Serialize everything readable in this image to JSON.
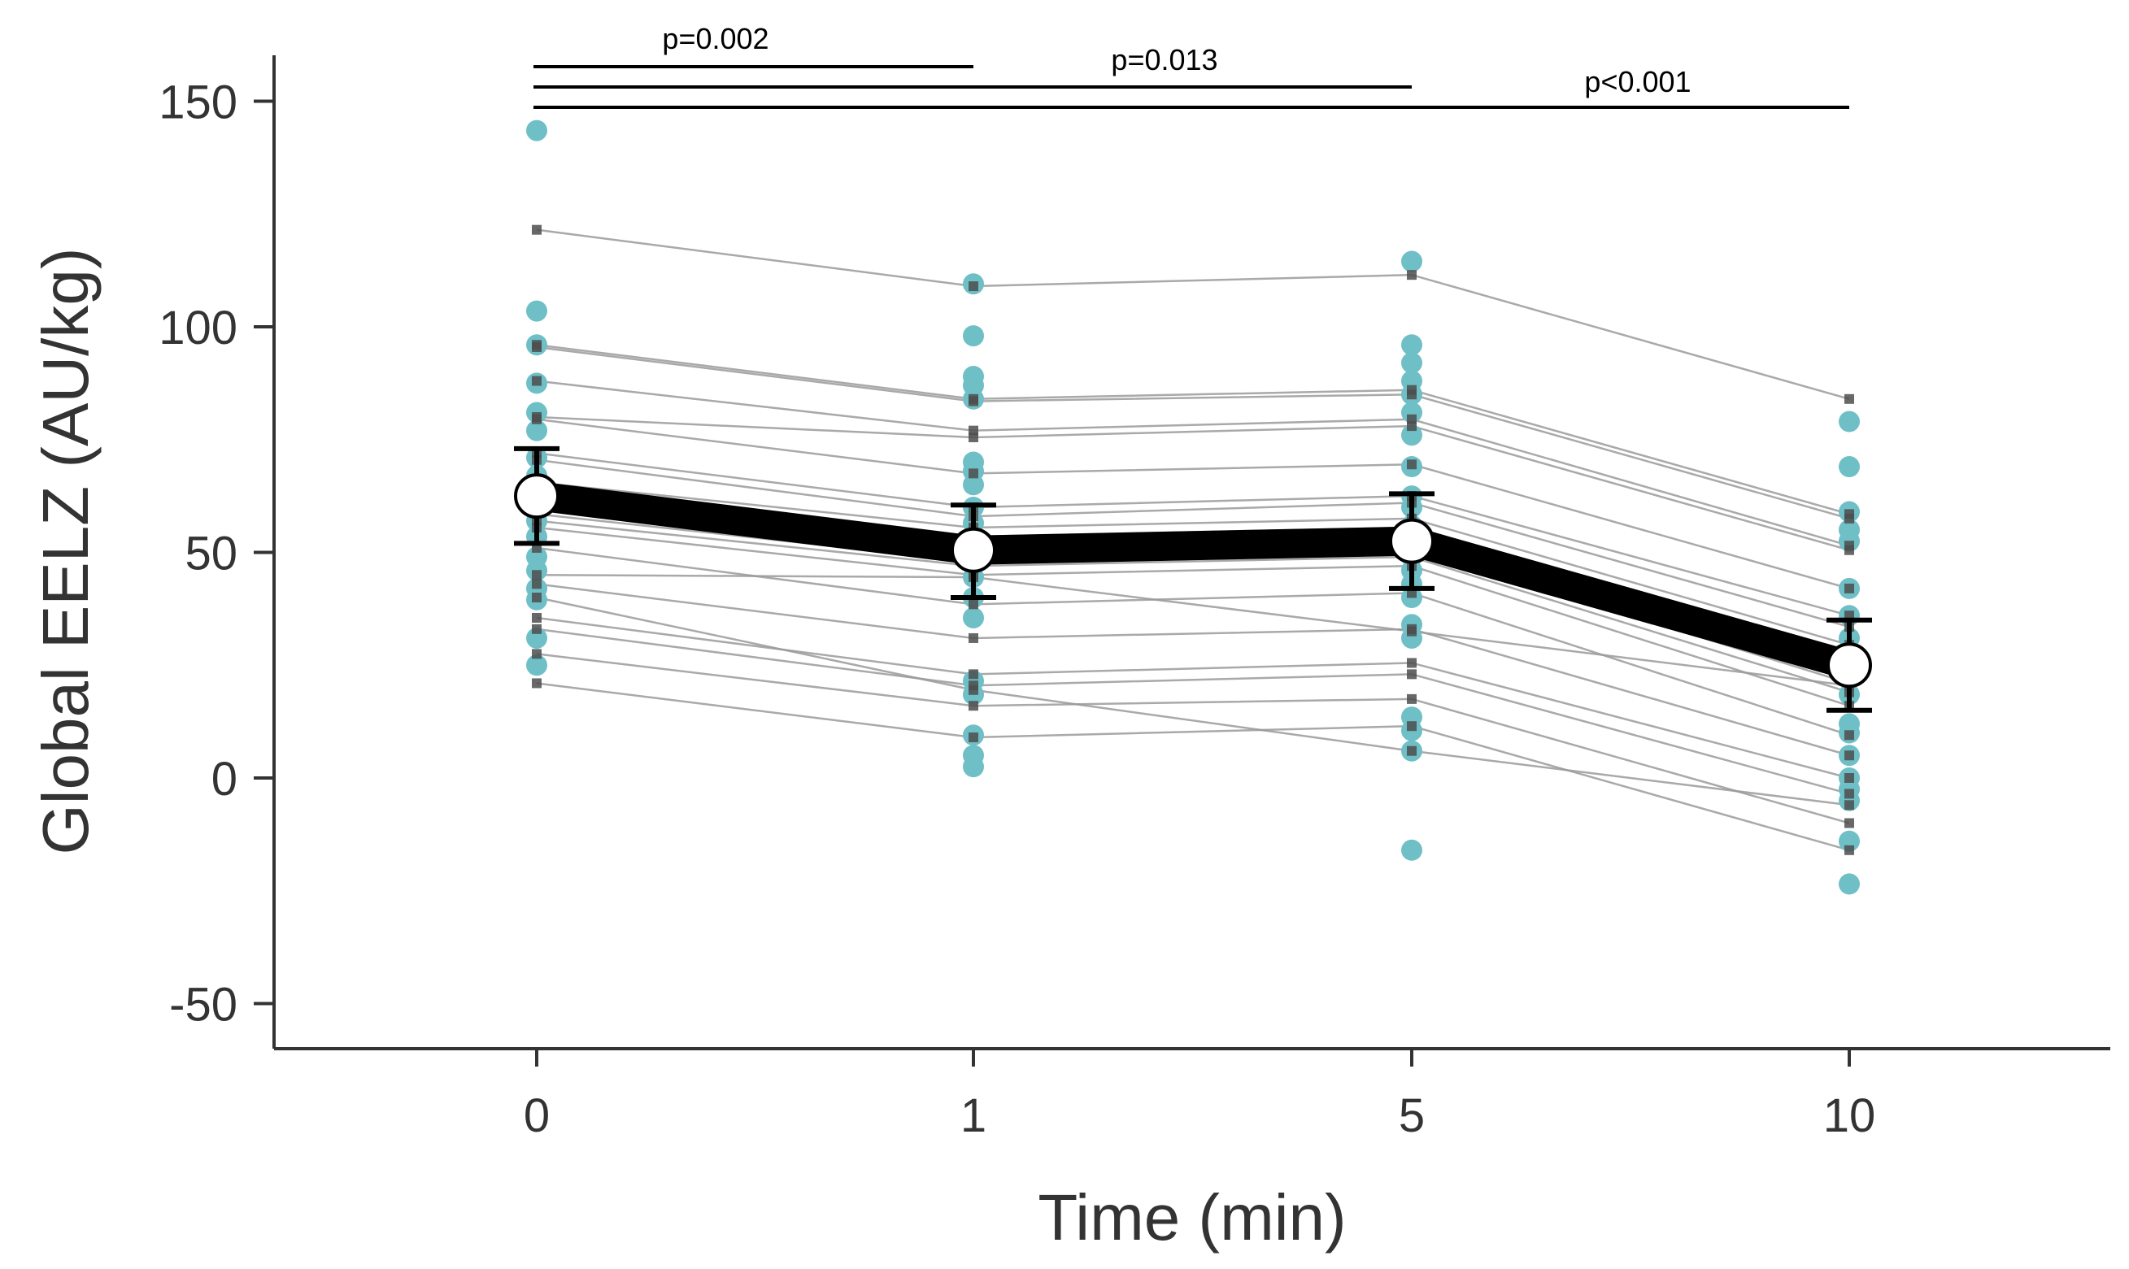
{
  "chart_data": {
    "type": "scatter",
    "xlabel": "Time (min)",
    "ylabel": "Global EELZ (AU/kg)",
    "categories": [
      "0",
      "1",
      "5",
      "10"
    ],
    "ylim": [
      -60,
      160
    ],
    "yticks": [
      150,
      100,
      50,
      0,
      -50
    ],
    "grid": false,
    "legend": "none",
    "colors": {
      "points": "#6fbfc6",
      "subject_lines": "#9a9a9a",
      "subject_markers": "#4d4d4d",
      "mean_line": "#000000",
      "mean_marker_fill": "#ffffff",
      "axis": "#333333"
    },
    "mean_series": {
      "values": [
        62.5,
        50.5,
        52.5,
        25
      ],
      "error_upper": [
        73,
        60.5,
        63,
        35
      ],
      "error_lower": [
        52,
        40,
        42,
        15
      ]
    },
    "points": [
      [
        143.5,
        103.5,
        96,
        87.5,
        81,
        77,
        71,
        67,
        62,
        57,
        53.5,
        49,
        46,
        42,
        39.5,
        31,
        25
      ],
      [
        109.5,
        98,
        89,
        87,
        84,
        70,
        68,
        65,
        60,
        56.5,
        54,
        51,
        48,
        44.5,
        40,
        35.5,
        21.5,
        18.5,
        9.5,
        5,
        2.5
      ],
      [
        114.5,
        96,
        92,
        88,
        85,
        81,
        76,
        69,
        62.5,
        60,
        56,
        49,
        46,
        43,
        40,
        34,
        31,
        13.5,
        10.5,
        6,
        -16
      ],
      [
        79,
        69,
        59,
        55,
        52.5,
        42,
        36,
        31,
        26,
        18.5,
        12,
        10,
        5,
        0,
        -2.5,
        -5,
        -14,
        -23.5
      ]
    ],
    "subjects": [
      [
        121.5,
        109,
        111.5,
        84
      ],
      [
        96,
        84,
        86,
        58.5
      ],
      [
        95.5,
        83.5,
        85,
        57.5
      ],
      [
        88,
        77,
        79.5,
        51.5
      ],
      [
        80,
        75.5,
        78,
        50.5
      ],
      [
        79.5,
        67.5,
        69.5,
        42
      ],
      [
        72,
        60,
        62.5,
        36
      ],
      [
        70.5,
        58,
        61,
        33.5
      ],
      [
        65.5,
        55.5,
        57.5,
        29.5
      ],
      [
        63,
        53.5,
        55.5,
        26.5
      ],
      [
        60.5,
        50.5,
        53,
        24
      ],
      [
        58.5,
        48,
        51,
        21
      ],
      [
        57,
        47,
        49,
        19
      ],
      [
        55.5,
        45,
        47,
        16
      ],
      [
        51,
        38.5,
        41,
        9.5
      ],
      [
        43,
        31,
        33,
        5
      ],
      [
        35.5,
        23,
        25.5,
        0
      ],
      [
        33,
        20.5,
        23,
        -3.5
      ],
      [
        27.5,
        16,
        17.5,
        -10
      ],
      [
        21,
        9,
        11.5,
        -16
      ],
      [
        45,
        44.5,
        32.5,
        20.5
      ],
      [
        40,
        19.5,
        6,
        -6
      ]
    ],
    "significance": [
      {
        "from": 0,
        "to": 1,
        "label": "p=0.002"
      },
      {
        "from": 0,
        "to": 2,
        "label": "p=0.013"
      },
      {
        "from": 0,
        "to": 3,
        "label": "p<0.001"
      }
    ]
  }
}
